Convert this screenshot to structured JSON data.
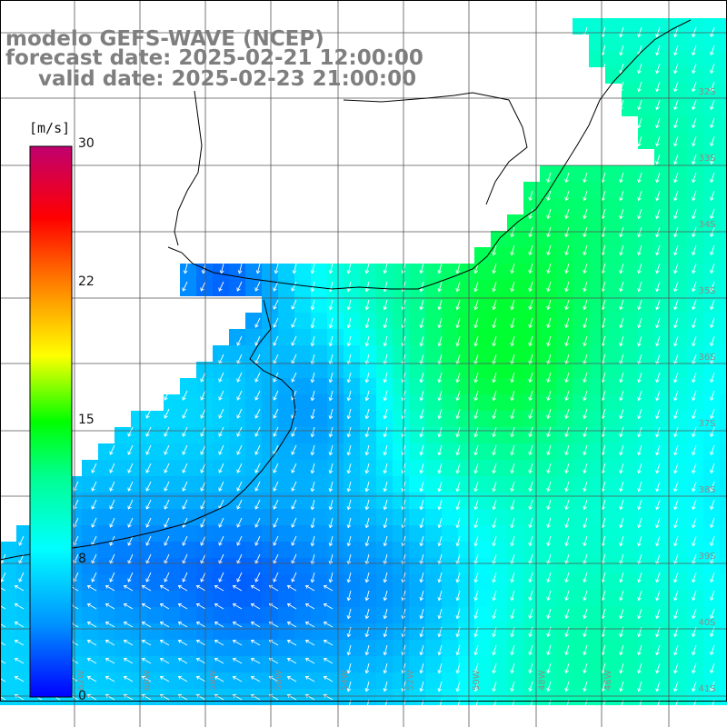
{
  "title": {
    "model": "modelo GEFS-WAVE (NCEP)",
    "forecast": "forecast date: 2025-02-21 12:00:00",
    "valid": "valid date: 2025-02-23 21:00:00"
  },
  "colorbar": {
    "unit": "[m/s]",
    "ticks": [
      "30",
      "22",
      "15",
      "8",
      "0"
    ],
    "range": [
      0,
      30
    ],
    "colors": [
      "#0000ff",
      "#00a0ff",
      "#00ffff",
      "#00ff80",
      "#00ff00",
      "#ffff00",
      "#ff8000",
      "#ff0000",
      "#c00060"
    ]
  },
  "axes": {
    "lat_labels": [
      "32S",
      "33S",
      "34S",
      "35S",
      "36S",
      "37S",
      "38S",
      "39S",
      "40S",
      "41S"
    ],
    "lon_labels": [
      "62W",
      "60W",
      "58W",
      "56W",
      "54W",
      "52W",
      "50W",
      "48W",
      "46W"
    ],
    "grid": true
  },
  "colors": {
    "land": "#ffffff",
    "coast": "#000000",
    "grid": "#555555",
    "arrows": "#ffffff",
    "label": "#8c8c8c"
  }
}
